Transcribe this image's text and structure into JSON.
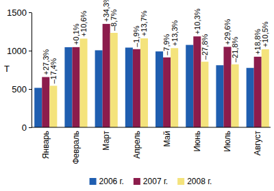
{
  "chart_data": {
    "type": "bar",
    "y_label": "Т",
    "categories": [
      "Январь",
      "Февраль",
      "Март",
      "Апрель",
      "Май",
      "Июнь",
      "Июль",
      "Август"
    ],
    "series": [
      {
        "name": "2006 г.",
        "color": "#1f5eb0",
        "values": [
          515,
          1045,
          1005,
          1040,
          990,
          1075,
          810,
          775
        ]
      },
      {
        "name": "2007 г.",
        "color": "#8c1c4c",
        "values": [
          656,
          1046,
          1349,
          1020,
          912,
          1186,
          1050,
          921
        ],
        "change_labels": [
          "+27,3%",
          "+0,1%",
          "+34,3%",
          "–1,9%",
          "–7,9%",
          "+10,3%",
          "+29,6%",
          "+18,8%"
        ]
      },
      {
        "name": "2008 г.",
        "color": "#f4e37c",
        "values": [
          542,
          1157,
          1232,
          1160,
          1033,
          856,
          821,
          1018
        ],
        "change_labels": [
          "–17,4%",
          "+10,6%",
          "–8,7%",
          "+13,7%",
          "+13,3%",
          "–27,8%",
          "–21,8%",
          "+10,5%"
        ]
      }
    ],
    "ylim": [
      0,
      1500
    ],
    "yticks": [
      0,
      500,
      1000,
      1500
    ],
    "legend": "bottom"
  }
}
